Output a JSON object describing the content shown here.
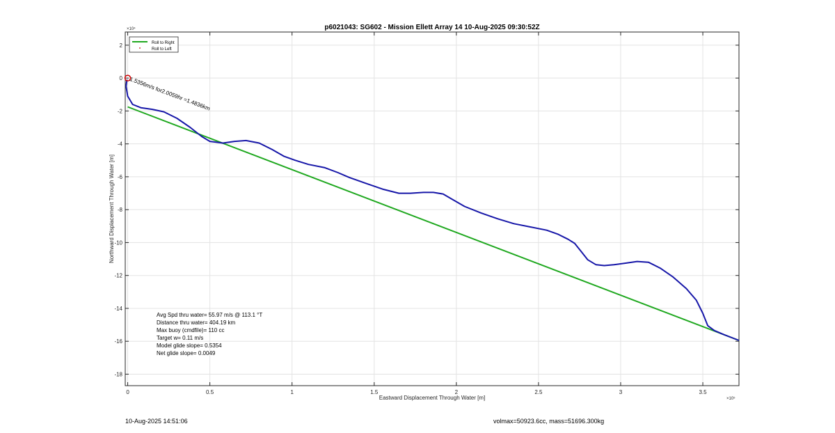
{
  "chart_data": {
    "type": "line",
    "title": "p6021043: SG602 - Mission Ellett Array 14 10-Aug-2025 09:30:52Z",
    "xlabel": "Eastward Displacement Through Water [m]",
    "ylabel": "Northward Displacement Through Water [m]",
    "x_exponent": "×10⁵",
    "y_exponent": "×10⁴",
    "xlim": [
      -0.015,
      3.72
    ],
    "ylim": [
      -18.7,
      2.8
    ],
    "x_ticks": [
      0,
      0.5,
      1,
      1.5,
      2,
      2.5,
      3,
      3.5
    ],
    "x_tick_labels": [
      "0",
      "0.5",
      "1",
      "1.5",
      "2",
      "2.5",
      "3",
      "3.5"
    ],
    "y_ticks": [
      -18,
      -16,
      -14,
      -12,
      -10,
      -8,
      -6,
      -4,
      -2,
      0,
      2
    ],
    "y_tick_labels": [
      "-18",
      "-16",
      "-14",
      "-12",
      "-10",
      "-8",
      "-6",
      "-4",
      "-2",
      "0",
      "2"
    ],
    "grid": true,
    "legend_position": "top-left",
    "series": [
      {
        "name": "Roll to Right",
        "color": "#1fa81f",
        "points": [
          [
            0.0,
            -1.75
          ],
          [
            3.72,
            -15.95
          ]
        ]
      },
      {
        "name": "Roll to Left",
        "color": "#c00000",
        "points": []
      },
      {
        "color": "#1616a8",
        "points": [
          [
            -0.005,
            -0.1
          ],
          [
            -0.01,
            -0.5
          ],
          [
            0.0,
            -1.1
          ],
          [
            0.03,
            -1.6
          ],
          [
            0.08,
            -1.8
          ],
          [
            0.15,
            -1.9
          ],
          [
            0.22,
            -2.05
          ],
          [
            0.3,
            -2.45
          ],
          [
            0.38,
            -3.0
          ],
          [
            0.45,
            -3.55
          ],
          [
            0.5,
            -3.85
          ],
          [
            0.58,
            -3.95
          ],
          [
            0.65,
            -3.85
          ],
          [
            0.72,
            -3.8
          ],
          [
            0.8,
            -3.95
          ],
          [
            0.88,
            -4.35
          ],
          [
            0.95,
            -4.75
          ],
          [
            1.02,
            -5.0
          ],
          [
            1.1,
            -5.25
          ],
          [
            1.2,
            -5.45
          ],
          [
            1.28,
            -5.75
          ],
          [
            1.35,
            -6.05
          ],
          [
            1.45,
            -6.4
          ],
          [
            1.55,
            -6.75
          ],
          [
            1.65,
            -7.0
          ],
          [
            1.72,
            -7.0
          ],
          [
            1.8,
            -6.95
          ],
          [
            1.86,
            -6.95
          ],
          [
            1.92,
            -7.05
          ],
          [
            1.98,
            -7.4
          ],
          [
            2.05,
            -7.8
          ],
          [
            2.15,
            -8.2
          ],
          [
            2.25,
            -8.55
          ],
          [
            2.35,
            -8.85
          ],
          [
            2.45,
            -9.05
          ],
          [
            2.55,
            -9.25
          ],
          [
            2.62,
            -9.5
          ],
          [
            2.68,
            -9.8
          ],
          [
            2.72,
            -10.05
          ],
          [
            2.76,
            -10.55
          ],
          [
            2.8,
            -11.05
          ],
          [
            2.85,
            -11.35
          ],
          [
            2.9,
            -11.4
          ],
          [
            2.96,
            -11.35
          ],
          [
            3.03,
            -11.25
          ],
          [
            3.1,
            -11.15
          ],
          [
            3.17,
            -11.2
          ],
          [
            3.24,
            -11.55
          ],
          [
            3.32,
            -12.1
          ],
          [
            3.4,
            -12.8
          ],
          [
            3.46,
            -13.5
          ],
          [
            3.5,
            -14.3
          ],
          [
            3.53,
            -15.05
          ],
          [
            3.57,
            -15.35
          ],
          [
            3.63,
            -15.6
          ],
          [
            3.72,
            -15.95
          ]
        ]
      }
    ],
    "annotations": {
      "segment_label": "1.5356m/s for2.0059hr =1.4836km",
      "stats": [
        "Avg Spd thru water= 55.97 m/s @ 113.1 °T",
        "Distance thru water= 404.19 km",
        "Max buoy (cmdfile)= 110 cc",
        "Target w= 0.11 m/s",
        "Model glide slope= 0.5354",
        "Net glide slope= 0.0049"
      ]
    }
  },
  "footer": {
    "left": "10-Aug-2025 14:51:06",
    "right": "volmax=50923.6cc, mass=51696.300kg"
  }
}
